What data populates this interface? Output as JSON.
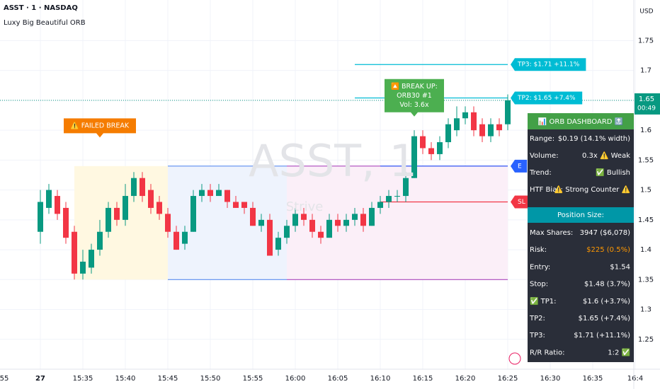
{
  "header": {
    "symbol": "ASST · 1 · NASDAQ",
    "indicator": "Luxy Big Beautiful ORB",
    "currency": "USD"
  },
  "watermark": {
    "title": "ASST, 1",
    "subtitle": "Strive"
  },
  "chart_data": {
    "type": "candlestick",
    "x": [
      "15:30",
      "15:31",
      "15:32",
      "15:33",
      "15:34",
      "15:35",
      "15:36",
      "15:37",
      "15:38",
      "15:39",
      "15:40",
      "15:41",
      "15:42",
      "15:43",
      "15:44",
      "15:45",
      "15:46",
      "15:47",
      "15:48",
      "15:49",
      "15:50",
      "15:51",
      "15:52",
      "15:53",
      "15:54",
      "15:55",
      "15:56",
      "15:57",
      "15:58",
      "15:59",
      "16:00",
      "16:01",
      "16:02",
      "16:03",
      "16:04",
      "16:05",
      "16:06",
      "16:07",
      "16:08",
      "16:09",
      "16:10",
      "16:11",
      "16:12",
      "16:13",
      "16:14",
      "16:15",
      "16:16",
      "16:17",
      "16:18",
      "16:19",
      "16:20",
      "16:21",
      "16:22",
      "16:23",
      "16:24",
      "16:25"
    ],
    "open": [
      1.43,
      1.47,
      1.49,
      1.47,
      1.43,
      1.36,
      1.37,
      1.4,
      1.43,
      1.47,
      1.45,
      1.49,
      1.52,
      1.5,
      1.48,
      1.46,
      1.43,
      1.41,
      1.43,
      1.49,
      1.5,
      1.49,
      1.5,
      1.48,
      1.48,
      1.47,
      1.44,
      1.45,
      1.4,
      1.42,
      1.44,
      1.46,
      1.45,
      1.43,
      1.42,
      1.45,
      1.44,
      1.45,
      1.46,
      1.44,
      1.47,
      1.48,
      1.49,
      1.49,
      1.52,
      1.59,
      1.57,
      1.56,
      1.58,
      1.6,
      1.62,
      1.63,
      1.61,
      1.59,
      1.61,
      1.61
    ],
    "high": [
      1.5,
      1.51,
      1.5,
      1.48,
      1.44,
      1.4,
      1.41,
      1.45,
      1.48,
      1.48,
      1.51,
      1.53,
      1.53,
      1.51,
      1.49,
      1.47,
      1.44,
      1.44,
      1.5,
      1.51,
      1.51,
      1.51,
      1.5,
      1.49,
      1.48,
      1.48,
      1.46,
      1.46,
      1.43,
      1.45,
      1.47,
      1.47,
      1.46,
      1.44,
      1.46,
      1.46,
      1.46,
      1.47,
      1.47,
      1.48,
      1.49,
      1.5,
      1.5,
      1.53,
      1.6,
      1.6,
      1.58,
      1.59,
      1.62,
      1.64,
      1.64,
      1.64,
      1.62,
      1.62,
      1.62,
      1.66
    ],
    "low": [
      1.41,
      1.46,
      1.45,
      1.41,
      1.35,
      1.35,
      1.36,
      1.39,
      1.42,
      1.44,
      1.44,
      1.48,
      1.48,
      1.46,
      1.45,
      1.42,
      1.4,
      1.4,
      1.43,
      1.48,
      1.48,
      1.49,
      1.47,
      1.47,
      1.46,
      1.44,
      1.43,
      1.39,
      1.39,
      1.41,
      1.43,
      1.44,
      1.42,
      1.41,
      1.42,
      1.43,
      1.43,
      1.44,
      1.43,
      1.44,
      1.46,
      1.47,
      1.48,
      1.48,
      1.52,
      1.56,
      1.55,
      1.55,
      1.57,
      1.59,
      1.61,
      1.59,
      1.58,
      1.58,
      1.59,
      1.6
    ],
    "close": [
      1.48,
      1.5,
      1.46,
      1.42,
      1.36,
      1.38,
      1.4,
      1.43,
      1.47,
      1.45,
      1.49,
      1.52,
      1.49,
      1.47,
      1.46,
      1.43,
      1.4,
      1.43,
      1.49,
      1.5,
      1.49,
      1.5,
      1.48,
      1.47,
      1.47,
      1.44,
      1.45,
      1.39,
      1.42,
      1.44,
      1.46,
      1.45,
      1.43,
      1.42,
      1.45,
      1.44,
      1.45,
      1.46,
      1.44,
      1.47,
      1.48,
      1.49,
      1.49,
      1.52,
      1.59,
      1.57,
      1.56,
      1.58,
      1.61,
      1.62,
      1.63,
      1.6,
      1.59,
      1.61,
      1.6,
      1.65
    ],
    "up_color": "#089981",
    "down_color": "#f23645",
    "ylim": [
      1.2,
      1.818
    ],
    "yticks": [
      1.25,
      1.3,
      1.35,
      1.4,
      1.45,
      1.5,
      1.55,
      1.6,
      1.65,
      1.7,
      1.75
    ],
    "xticks": [
      {
        "value": "15:25",
        "label": "55"
      },
      {
        "value": "15:30",
        "label": "27"
      },
      "15:35",
      "15:40",
      "15:45",
      "15:50",
      "15:55",
      "16:00",
      "16:05",
      "16:10",
      "16:15",
      "16:20",
      "16:25",
      "16:30",
      "16:35",
      {
        "value": "16:40",
        "label": "16:4"
      }
    ],
    "grid": true,
    "last_price": {
      "value": 1.65,
      "label": "1.65",
      "countdown": "00:49",
      "color": "#089981"
    },
    "zones": [
      {
        "from": "15:34",
        "to": "15:45",
        "top": 1.54,
        "bottom": 1.35,
        "color": "#fff8e1"
      },
      {
        "from": "15:45",
        "to": "15:59",
        "top": 1.54,
        "bottom": 1.35,
        "color": "#eef3fd"
      },
      {
        "from": "15:59",
        "to": "16:25",
        "top": 1.54,
        "bottom": 1.35,
        "color": "#fbeff8"
      }
    ],
    "levels": [
      {
        "value": 1.54,
        "from": "15:45",
        "to": "15:59",
        "color": "#5b8def"
      },
      {
        "value": 1.35,
        "from": "15:45",
        "to": "15:59",
        "color": "#5b8def"
      },
      {
        "value": 1.54,
        "from": "15:59",
        "to": "16:25",
        "color": "#ab47bc"
      },
      {
        "value": 1.35,
        "from": "15:59",
        "to": "16:25",
        "color": "#ab47bc"
      },
      {
        "value": 1.71,
        "from": "16:07",
        "to": "16:25",
        "color": "#00bcd4",
        "label": "TP3: $1.71 +11.1%"
      },
      {
        "value": 1.654,
        "from": "16:07",
        "to": "16:25",
        "color": "#00bcd4",
        "label": "TP2: $1.65 +7.4%"
      },
      {
        "value": 1.54,
        "from": "16:10",
        "to": "16:25",
        "color": "#2962ff",
        "label": "E"
      },
      {
        "value": 1.48,
        "from": "16:10",
        "to": "16:25",
        "color": "#f23645",
        "label": "SL"
      }
    ],
    "annotations": [
      {
        "text": "⚠️ FAILED BREAK",
        "x": "15:37",
        "value": 1.595,
        "color": "#f57c00"
      },
      {
        "text": "🔼 BREAK UP:\nORB30 #1\nVol: 3.6x",
        "x": "16:14",
        "value": 1.63,
        "color": "#4caf50"
      }
    ]
  },
  "dashboard": {
    "title": "📊 ORB DASHBOARD 🔝",
    "rows": [
      [
        "Range:",
        "$0.19 (14.1% width)"
      ],
      [
        "Volume:",
        "0.3x ⚠️ Weak"
      ],
      [
        "Trend:",
        "✅ Bullish"
      ],
      [
        "HTF Bias:",
        "⚠️ Strong Counter ⚠️"
      ]
    ],
    "section": "Position Size:",
    "rows2": [
      [
        "Max Shares:",
        "3947 ($6,078)"
      ],
      [
        "Risk:",
        "$225 (0.5%)"
      ],
      [
        "Entry:",
        "$1.54"
      ],
      [
        "Stop:",
        "$1.48 (3.7%)"
      ],
      [
        "✅ TP1:",
        "$1.6 (+3.7%)"
      ],
      [
        "TP2:",
        "$1.65 (+7.4%)"
      ],
      [
        "TP3:",
        "$1.71 (+11.1%)"
      ],
      [
        "R/R Ratio:",
        "1:2 ✅"
      ]
    ]
  }
}
